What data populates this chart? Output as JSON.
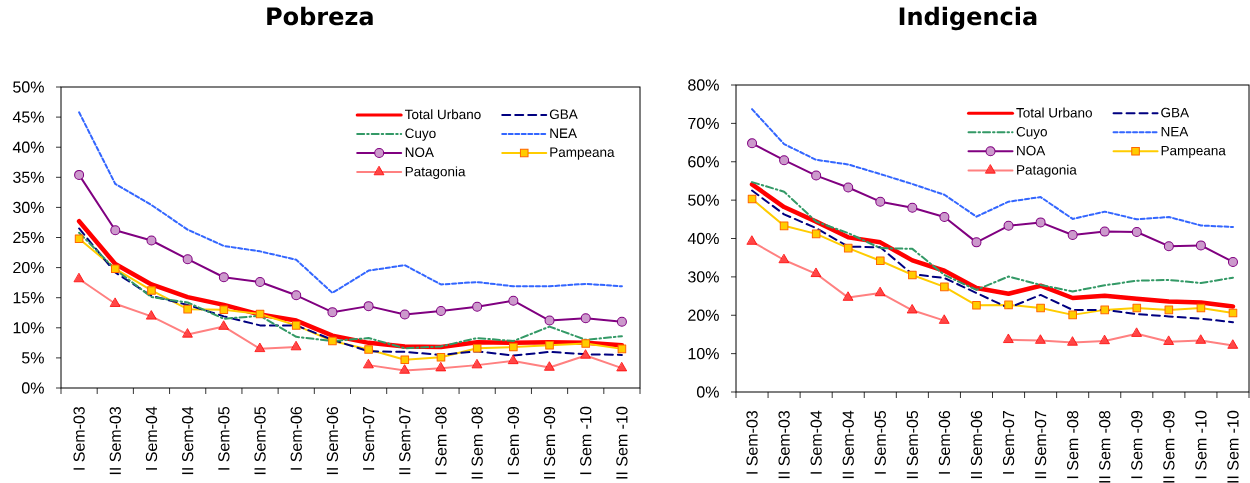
{
  "chart_data": [
    {
      "type": "line",
      "title": "Pobreza",
      "legend": "top right",
      "categories": [
        "I Sem-03",
        "II Sem-03",
        "I Sem-04",
        "II Sem-04",
        "I Sem-05",
        "II Sem-05",
        "I Sem-06",
        "II Sem-06",
        "I Sem-07",
        "II Sem-07",
        "I Sem -08",
        "II Sem -08",
        "I Sem -09",
        "II Sem -09",
        "I Sem -10",
        "II Sem -10"
      ],
      "ylim": [
        0,
        50
      ],
      "yticks": [
        {
          "value": 0,
          "label": "0%"
        },
        {
          "value": 5,
          "label": "5%"
        },
        {
          "value": 10,
          "label": "10%"
        },
        {
          "value": 15,
          "label": "15%"
        },
        {
          "value": 20,
          "label": "20%"
        },
        {
          "value": 25,
          "label": "25%"
        },
        {
          "value": 30,
          "label": "30%"
        },
        {
          "value": 35,
          "label": "35%"
        },
        {
          "value": 40,
          "label": "40%"
        },
        {
          "value": 45,
          "label": "45%"
        },
        {
          "value": 50,
          "label": "50%"
        }
      ],
      "series": [
        {
          "name": "Total Urbano",
          "color": "#ff0000",
          "line_style": "solid",
          "values": [
            27.7,
            20.6,
            17.2,
            15.1,
            13.8,
            12.2,
            11.2,
            8.7,
            7.5,
            6.9,
            6.8,
            7.6,
            7.5,
            7.6,
            7.5,
            7.1
          ]
        },
        {
          "name": "GBA",
          "color": "#000080",
          "line_style": "dashed",
          "values": [
            26.5,
            19.2,
            15.3,
            13.8,
            11.9,
            10.4,
            10.4,
            8.0,
            6.1,
            6.0,
            5.5,
            6.1,
            5.4,
            6.0,
            5.6,
            5.5
          ]
        },
        {
          "name": "Cuyo",
          "color": "#339966",
          "line_style": "dashdot",
          "values": [
            25.8,
            19.7,
            15.1,
            14.2,
            11.5,
            12.0,
            8.5,
            7.8,
            8.3,
            6.6,
            6.9,
            8.3,
            7.8,
            10.2,
            8.0,
            8.6
          ]
        },
        {
          "name": "NEA",
          "color": "#3366ff",
          "line_style": "dotted",
          "values": [
            45.8,
            33.9,
            30.4,
            26.3,
            23.6,
            22.7,
            21.3,
            15.8,
            19.5,
            20.4,
            17.2,
            17.6,
            16.9,
            16.9,
            17.3,
            16.9
          ]
        },
        {
          "name": "NOA",
          "color": "#800080",
          "line_style": "solid",
          "marker": "circle",
          "values": [
            35.4,
            26.2,
            24.5,
            21.4,
            18.4,
            17.6,
            15.4,
            12.6,
            13.6,
            12.2,
            12.8,
            13.5,
            14.5,
            11.2,
            11.6,
            11.0
          ]
        },
        {
          "name": "Pampeana",
          "color": "#ffcc00",
          "line_style": "solid",
          "marker": "square",
          "values": [
            24.8,
            19.8,
            16.2,
            13.1,
            13.0,
            12.3,
            10.4,
            7.8,
            6.4,
            4.7,
            5.1,
            6.6,
            6.8,
            7.1,
            7.4,
            6.5
          ]
        },
        {
          "name": "Patagonia",
          "color": "#ff8080",
          "line_style": "solid",
          "marker": "triangle",
          "values": [
            18.1,
            14.0,
            11.9,
            8.9,
            10.2,
            6.5,
            6.8,
            null,
            3.8,
            2.9,
            3.3,
            3.8,
            4.5,
            3.4,
            5.4,
            3.3
          ]
        }
      ]
    },
    {
      "type": "line",
      "title": "Indigencia",
      "legend": "top right",
      "categories": [
        "I Sem-03",
        "II Sem-03",
        "I Sem-04",
        "II Sem-04",
        "I Sem-05",
        "II Sem-05",
        "I Sem-06",
        "II Sem-06",
        "I Sem-07",
        "II Sem-07",
        "I Sem -08",
        "II Sem -08",
        "I Sem -09",
        "II Sem -09",
        "I Sem -10",
        "II Sem -10"
      ],
      "ylim": [
        0,
        80
      ],
      "yticks": [
        {
          "value": 0,
          "label": "0%"
        },
        {
          "value": 10,
          "label": "10%"
        },
        {
          "value": 20,
          "label": "20%"
        },
        {
          "value": 30,
          "label": "30%"
        },
        {
          "value": 40,
          "label": "40%"
        },
        {
          "value": 50,
          "label": "50%"
        },
        {
          "value": 60,
          "label": "60%"
        },
        {
          "value": 70,
          "label": "70%"
        },
        {
          "value": 80,
          "label": "80%"
        }
      ],
      "series": [
        {
          "name": "Total Urbano",
          "color": "#ff0000",
          "line_style": "solid",
          "values": [
            54.1,
            48.2,
            44.4,
            40.3,
            39.0,
            34.3,
            31.6,
            27.1,
            25.6,
            27.7,
            24.5,
            25.1,
            24.3,
            23.6,
            23.3,
            22.3
          ]
        },
        {
          "name": "GBA",
          "color": "#000080",
          "line_style": "dashed",
          "values": [
            52.5,
            46.3,
            42.7,
            37.9,
            37.7,
            30.7,
            29.7,
            25.8,
            21.9,
            25.3,
            21.4,
            21.4,
            20.3,
            19.7,
            19.1,
            18.2
          ]
        },
        {
          "name": "Cuyo",
          "color": "#339966",
          "line_style": "dashdot",
          "values": [
            54.7,
            52.2,
            44.4,
            41.4,
            37.5,
            37.3,
            30.5,
            26.6,
            30.1,
            27.9,
            26.2,
            27.8,
            29.0,
            29.2,
            28.4,
            29.8
          ]
        },
        {
          "name": "NEA",
          "color": "#3366ff",
          "line_style": "dotted",
          "values": [
            73.7,
            64.6,
            60.5,
            59.3,
            56.8,
            54.2,
            51.4,
            45.7,
            49.6,
            50.8,
            45.1,
            47.0,
            45.0,
            45.6,
            43.4,
            43.0
          ]
        },
        {
          "name": "NOA",
          "color": "#800080",
          "line_style": "solid",
          "marker": "circle",
          "values": [
            64.8,
            60.4,
            56.4,
            53.3,
            49.6,
            48.0,
            45.6,
            39.0,
            43.3,
            44.2,
            40.9,
            41.8,
            41.7,
            38.0,
            38.2,
            33.9
          ]
        },
        {
          "name": "Pampeana",
          "color": "#ffcc00",
          "line_style": "solid",
          "marker": "square",
          "values": [
            50.3,
            43.3,
            41.2,
            37.5,
            34.2,
            30.5,
            27.4,
            22.6,
            22.7,
            21.9,
            20.1,
            21.4,
            21.9,
            21.4,
            21.9,
            20.6
          ]
        },
        {
          "name": "Patagonia",
          "color": "#ff8080",
          "line_style": "solid",
          "marker": "triangle",
          "values": [
            39.2,
            34.4,
            30.8,
            24.6,
            25.8,
            21.3,
            18.6,
            null,
            13.6,
            13.4,
            12.9,
            13.3,
            15.2,
            13.1,
            13.4,
            12.1
          ]
        }
      ]
    }
  ]
}
